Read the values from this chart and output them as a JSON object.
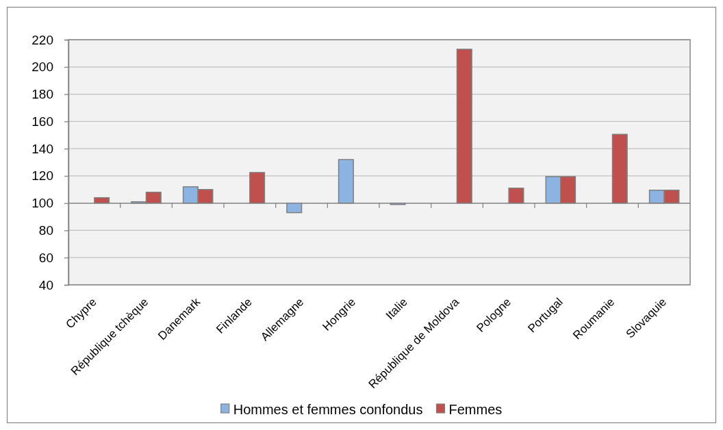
{
  "chart_data": {
    "type": "bar",
    "categories": [
      "Chypre",
      "République tchèque",
      "Danemark",
      "Finlande",
      "Allemagne",
      "Hongrie",
      "Italie",
      "République de Moldova",
      "Pologne",
      "Portugal",
      "Roumanie",
      "Slovaquie"
    ],
    "series": [
      {
        "name": "Hommes et femmes confondus",
        "color": "#8db3e2",
        "base": [
          null,
          100,
          100,
          null,
          100,
          100,
          100,
          null,
          null,
          100,
          null,
          100
        ],
        "values": [
          null,
          1,
          12,
          null,
          -7,
          32,
          -1,
          null,
          null,
          19.5,
          null,
          9.5
        ]
      },
      {
        "name": "Femmes",
        "color": "#c0504d",
        "base": [
          100,
          100,
          100,
          100,
          null,
          null,
          null,
          100,
          100,
          100,
          100,
          100
        ],
        "values": [
          4,
          8,
          10,
          22.5,
          null,
          null,
          null,
          113,
          11,
          19.5,
          50.5,
          9.5
        ]
      }
    ],
    "ref_lines": [
      {
        "axis": "y",
        "value": 100,
        "color": "#868686"
      }
    ],
    "ylim": [
      40,
      220
    ],
    "yticks": [
      40,
      60,
      80,
      100,
      120,
      140,
      160,
      180,
      200,
      220
    ],
    "grid": "y",
    "legend": "bottom"
  }
}
